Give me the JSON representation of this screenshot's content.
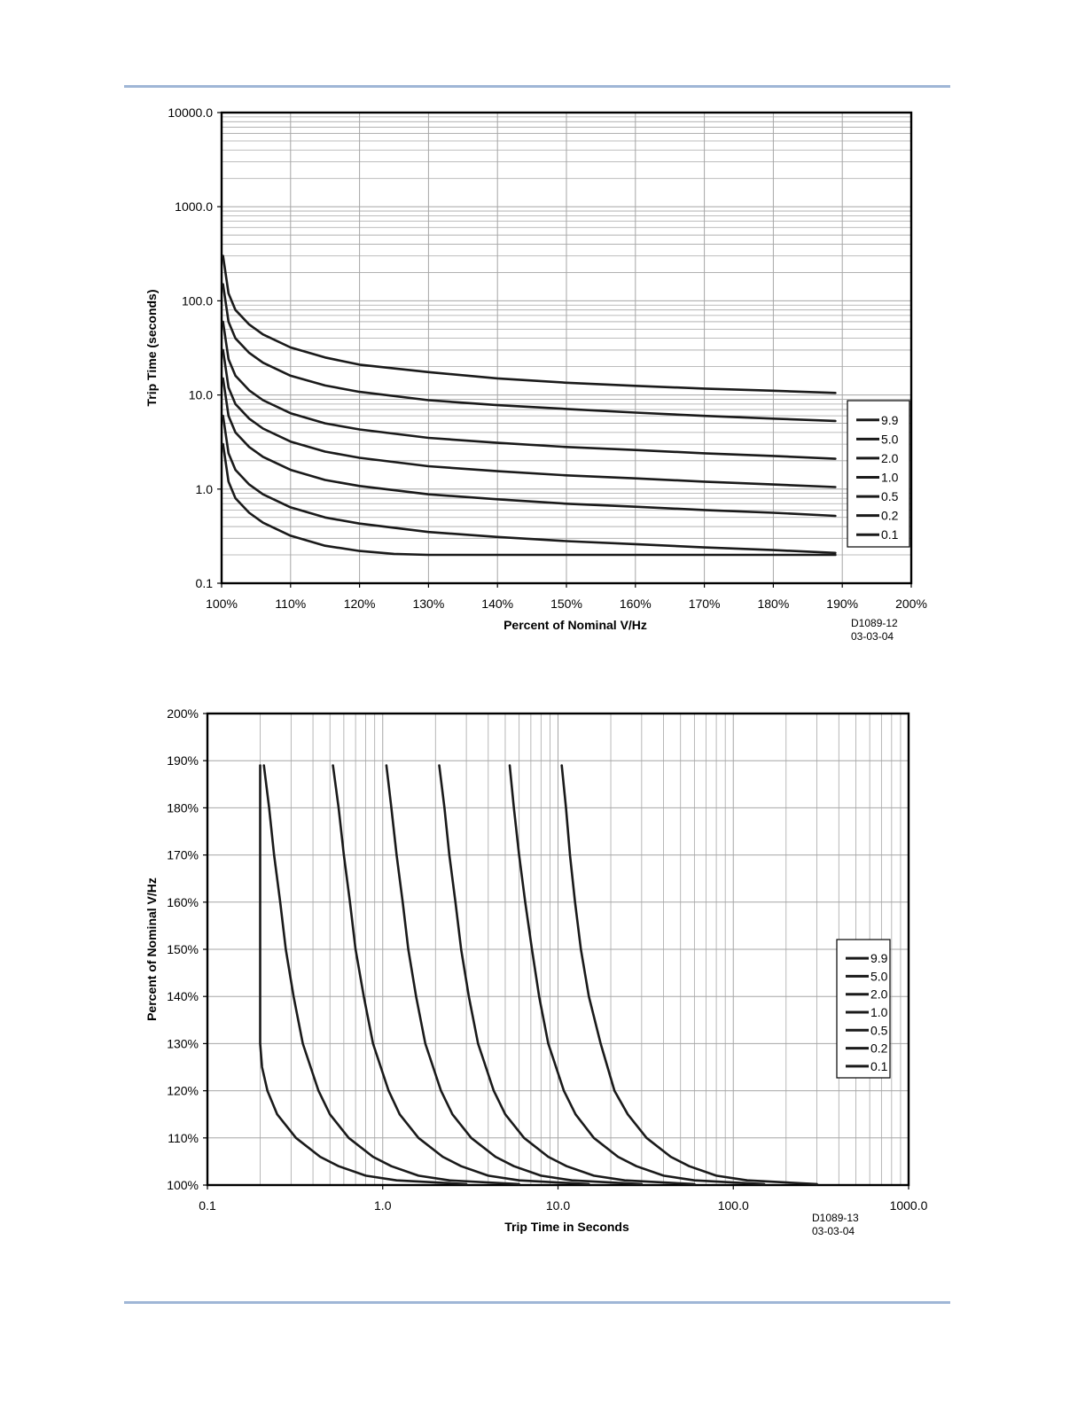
{
  "colors": {
    "rule": "#9fb6d6",
    "grid": "#a6a6a6",
    "curve": "#1a1a1a"
  },
  "chart_data": [
    {
      "type": "line",
      "xlabel": "Percent of Nominal V/Hz",
      "ylabel": "Trip Time (seconds)",
      "xscale": "linear",
      "yscale": "log",
      "xlim": [
        100,
        200
      ],
      "ylim": [
        0.1,
        10000
      ],
      "x_ticks": [
        "100%",
        "110%",
        "120%",
        "130%",
        "140%",
        "150%",
        "160%",
        "170%",
        "180%",
        "190%",
        "200%"
      ],
      "y_ticks": [
        "0.1",
        "1.0",
        "10.0",
        "100.0",
        "1000.0",
        "10000.0"
      ],
      "grid": true,
      "legend_position": "right",
      "figure_code": [
        "D1089-12",
        "03-03-04"
      ],
      "series": [
        {
          "name": "9.9",
          "x": [
            100.2,
            101,
            102,
            104,
            106,
            110,
            115,
            120,
            130,
            140,
            150,
            160,
            170,
            180,
            189
          ],
          "y": [
            300,
            120,
            80,
            56,
            44,
            32,
            25,
            21,
            17.5,
            15,
            13.5,
            12.5,
            11.7,
            11.1,
            10.5
          ]
        },
        {
          "name": "5.0",
          "x": [
            100.2,
            101,
            102,
            104,
            106,
            110,
            115,
            120,
            130,
            140,
            150,
            160,
            170,
            180,
            189
          ],
          "y": [
            150,
            60,
            40,
            28,
            22,
            16,
            12.6,
            10.8,
            8.8,
            7.8,
            7.1,
            6.5,
            6.0,
            5.6,
            5.3
          ]
        },
        {
          "name": "2.0",
          "x": [
            100.2,
            101,
            102,
            104,
            106,
            110,
            115,
            120,
            130,
            140,
            150,
            160,
            170,
            180,
            189
          ],
          "y": [
            60,
            24,
            16,
            11.2,
            8.8,
            6.4,
            5.0,
            4.3,
            3.5,
            3.1,
            2.8,
            2.6,
            2.4,
            2.25,
            2.1
          ]
        },
        {
          "name": "1.0",
          "x": [
            100.2,
            101,
            102,
            104,
            106,
            110,
            115,
            120,
            130,
            140,
            150,
            160,
            170,
            180,
            189
          ],
          "y": [
            30,
            12,
            8,
            5.6,
            4.4,
            3.2,
            2.5,
            2.15,
            1.75,
            1.55,
            1.4,
            1.3,
            1.2,
            1.12,
            1.05
          ]
        },
        {
          "name": "0.5",
          "x": [
            100.2,
            101,
            102,
            104,
            106,
            110,
            115,
            120,
            130,
            140,
            150,
            160,
            170,
            180,
            189
          ],
          "y": [
            15,
            6,
            4,
            2.8,
            2.2,
            1.6,
            1.25,
            1.08,
            0.88,
            0.78,
            0.7,
            0.65,
            0.6,
            0.56,
            0.52
          ]
        },
        {
          "name": "0.2",
          "x": [
            100.2,
            101,
            102,
            104,
            106,
            110,
            115,
            120,
            130,
            140,
            150,
            160,
            170,
            180,
            189
          ],
          "y": [
            6,
            2.4,
            1.6,
            1.12,
            0.88,
            0.64,
            0.5,
            0.43,
            0.35,
            0.31,
            0.28,
            0.26,
            0.24,
            0.225,
            0.21
          ]
        },
        {
          "name": "0.1",
          "x": [
            100.2,
            101,
            102,
            104,
            106,
            110,
            115,
            120,
            125,
            130,
            140,
            150,
            160,
            170,
            180,
            189
          ],
          "y": [
            3,
            1.2,
            0.8,
            0.56,
            0.44,
            0.32,
            0.25,
            0.22,
            0.205,
            0.2,
            0.2,
            0.2,
            0.2,
            0.2,
            0.2,
            0.2
          ]
        }
      ]
    },
    {
      "type": "line",
      "xlabel": "Trip Time in Seconds",
      "ylabel": "Percent of Nominal V/Hz",
      "xscale": "log",
      "yscale": "linear",
      "xlim": [
        0.1,
        1000
      ],
      "ylim": [
        100,
        200
      ],
      "x_ticks": [
        "0.1",
        "1.0",
        "10.0",
        "100.0",
        "1000.0"
      ],
      "y_ticks": [
        "100%",
        "110%",
        "120%",
        "130%",
        "140%",
        "150%",
        "160%",
        "170%",
        "180%",
        "190%",
        "200%"
      ],
      "grid": true,
      "legend_position": "right",
      "figure_code": [
        "D1089-13",
        "03-03-04"
      ],
      "series": [
        {
          "name": "9.9",
          "x": [
            300,
            120,
            80,
            56,
            44,
            32,
            25,
            21,
            17.5,
            15,
            13.5,
            12.5,
            11.7,
            11.1,
            10.5
          ],
          "y": [
            100.2,
            101,
            102,
            104,
            106,
            110,
            115,
            120,
            130,
            140,
            150,
            160,
            170,
            180,
            189
          ]
        },
        {
          "name": "5.0",
          "x": [
            150,
            60,
            40,
            28,
            22,
            16,
            12.6,
            10.8,
            8.8,
            7.8,
            7.1,
            6.5,
            6.0,
            5.6,
            5.3
          ],
          "y": [
            100.2,
            101,
            102,
            104,
            106,
            110,
            115,
            120,
            130,
            140,
            150,
            160,
            170,
            180,
            189
          ]
        },
        {
          "name": "2.0",
          "x": [
            60,
            24,
            16,
            11.2,
            8.8,
            6.4,
            5.0,
            4.3,
            3.5,
            3.1,
            2.8,
            2.6,
            2.4,
            2.25,
            2.1
          ],
          "y": [
            100.2,
            101,
            102,
            104,
            106,
            110,
            115,
            120,
            130,
            140,
            150,
            160,
            170,
            180,
            189
          ]
        },
        {
          "name": "1.0",
          "x": [
            30,
            12,
            8,
            5.6,
            4.4,
            3.2,
            2.5,
            2.15,
            1.75,
            1.55,
            1.4,
            1.3,
            1.2,
            1.12,
            1.05
          ],
          "y": [
            100.2,
            101,
            102,
            104,
            106,
            110,
            115,
            120,
            130,
            140,
            150,
            160,
            170,
            180,
            189
          ]
        },
        {
          "name": "0.5",
          "x": [
            15,
            6,
            4,
            2.8,
            2.2,
            1.6,
            1.25,
            1.08,
            0.88,
            0.78,
            0.7,
            0.65,
            0.6,
            0.56,
            0.52
          ],
          "y": [
            100.2,
            101,
            102,
            104,
            106,
            110,
            115,
            120,
            130,
            140,
            150,
            160,
            170,
            180,
            189
          ]
        },
        {
          "name": "0.2",
          "x": [
            6,
            2.4,
            1.6,
            1.12,
            0.88,
            0.64,
            0.5,
            0.43,
            0.35,
            0.31,
            0.28,
            0.26,
            0.24,
            0.225,
            0.21
          ],
          "y": [
            100.2,
            101,
            102,
            104,
            106,
            110,
            115,
            120,
            130,
            140,
            150,
            160,
            170,
            180,
            189
          ]
        },
        {
          "name": "0.1",
          "x": [
            3,
            1.2,
            0.8,
            0.56,
            0.44,
            0.32,
            0.25,
            0.22,
            0.205,
            0.2,
            0.2,
            0.2,
            0.2,
            0.2,
            0.2,
            0.2
          ],
          "y": [
            100.2,
            101,
            102,
            104,
            106,
            110,
            115,
            120,
            125,
            130,
            140,
            150,
            160,
            170,
            180,
            189
          ]
        }
      ]
    }
  ]
}
